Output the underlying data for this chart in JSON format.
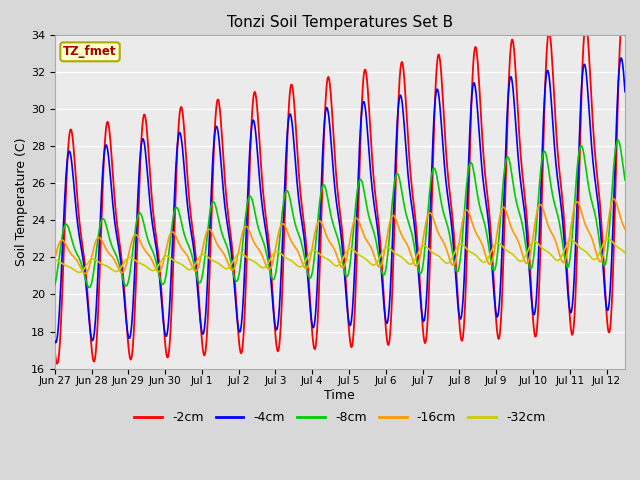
{
  "title": "Tonzi Soil Temperatures Set B",
  "xlabel": "Time",
  "ylabel": "Soil Temperature (C)",
  "ylim": [
    16,
    34
  ],
  "yticks": [
    16,
    18,
    20,
    22,
    24,
    26,
    28,
    30,
    32,
    34
  ],
  "annotation_text": "TZ_fmet",
  "annotation_color": "#aa0000",
  "annotation_bg": "#ffffcc",
  "annotation_border": "#aaaa00",
  "series_colors": [
    "#ff0000",
    "#0000ff",
    "#00cc00",
    "#ff9900",
    "#cccc00"
  ],
  "series_labels": [
    "-2cm",
    "-4cm",
    "-8cm",
    "-16cm",
    "-32cm"
  ],
  "background_color": "#d8d8d8",
  "plot_bg_color": "#ebebeb",
  "grid_color": "#ffffff",
  "x_tick_labels": [
    "Jun 27",
    "Jun 28",
    "Jun 29",
    "Jun 30",
    "Jul 1",
    "Jul 2",
    "Jul 3",
    "Jul 4",
    "Jul 5",
    "Jul 6",
    "Jul 7",
    "Jul 8",
    "Jul 9",
    "Jul 10",
    "Jul 11",
    "Jul 12"
  ],
  "n_points": 768,
  "end_day": 15.5
}
